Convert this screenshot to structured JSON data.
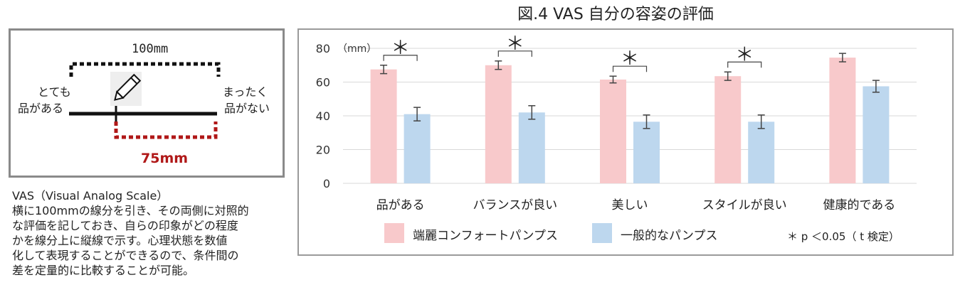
{
  "title": "図.4 VAS 自分の容姿の評価",
  "vas_diagram": {
    "top_length": "100mm",
    "left_label_line1": "とても",
    "left_label_line2": "品がある",
    "right_label_line1": "まったく",
    "right_label_line2": "品がない",
    "mark_length": "75mm"
  },
  "description": {
    "heading": "VAS（Visual Analog Scale）",
    "lines": [
      "横に100mmの線分を引き、その両側に対照的",
      "な評価を記しておき、自らの印象がどの程度",
      "かを線分上に縦線で示す。心理状態を数値",
      "化して表現することができるので、条件間の",
      "差を定量的に比較することが可能。"
    ]
  },
  "chart_data": {
    "type": "bar",
    "unit_label": "（mm）",
    "categories": [
      "品がある",
      "バランスが良い",
      "美しい",
      "スタイルが良い",
      "健康的である"
    ],
    "series": [
      {
        "name": "端麗コンフォートパンプス",
        "color": "#f8c9cb",
        "values": [
          67.5,
          70,
          61.5,
          63.5,
          74.5
        ],
        "error": [
          2.5,
          2.5,
          2,
          2.5,
          2.5
        ]
      },
      {
        "name": "一般的なパンプス",
        "color": "#bdd7ee",
        "values": [
          41,
          42,
          36.5,
          36.5,
          57.5
        ],
        "error": [
          4,
          4,
          4,
          4,
          3.5
        ]
      }
    ],
    "yticks": [
      "0",
      "20",
      "40",
      "60",
      "80"
    ],
    "ylim": [
      0,
      80
    ],
    "grid": true,
    "legend_position": "bottom",
    "significance": [
      {
        "category_index": 0,
        "mark": "＊"
      },
      {
        "category_index": 1,
        "mark": "＊"
      },
      {
        "category_index": 2,
        "mark": "＊"
      },
      {
        "category_index": 3,
        "mark": "＊"
      }
    ],
    "note": "＊ p ＜0.05（ t 検定）"
  }
}
